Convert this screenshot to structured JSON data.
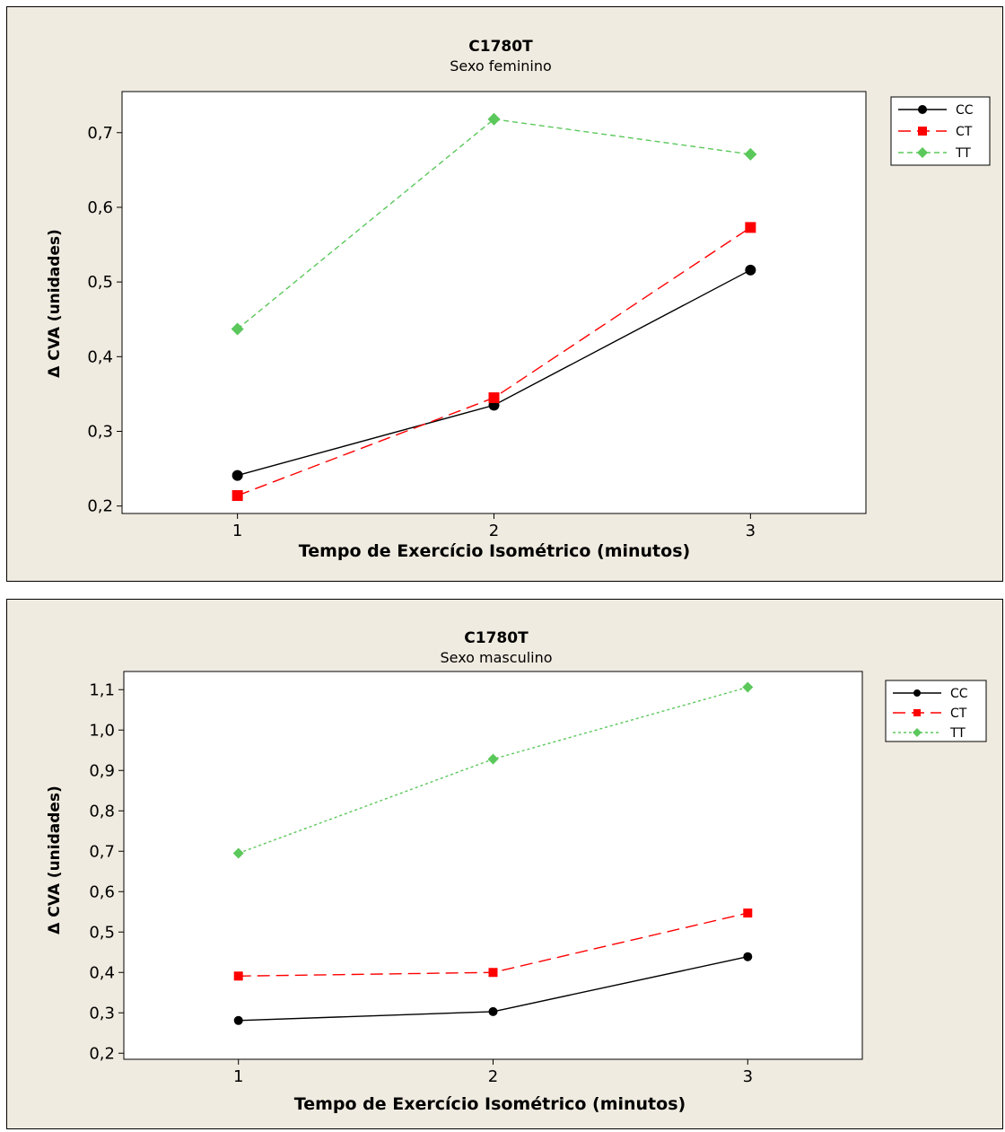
{
  "chart_data": [
    {
      "type": "line",
      "title": "C1780T",
      "subtitle": "Sexo feminino",
      "xlabel": "Tempo de Exercício Isométrico (minutos)",
      "ylabel": "Δ CVA (unidades)",
      "x": [
        1,
        2,
        3
      ],
      "xlim": [
        0.55,
        3.45
      ],
      "ylim": [
        0.19,
        0.755
      ],
      "yticks": [
        "0,2",
        "0,3",
        "0,4",
        "0,5",
        "0,6",
        "0,7"
      ],
      "xticks": [
        "1",
        "2",
        "3"
      ],
      "legend_position": "top-right",
      "series": [
        {
          "name": "CC",
          "values": [
            0.241,
            0.335,
            0.516
          ],
          "color": "#000000",
          "marker": "circle",
          "dash": ""
        },
        {
          "name": "CT",
          "values": [
            0.214,
            0.345,
            0.573
          ],
          "color": "#ff0000",
          "marker": "square",
          "dash": "14,7"
        },
        {
          "name": "TT",
          "values": [
            0.437,
            0.718,
            0.671
          ],
          "color": "#5bc85b",
          "marker": "diamond",
          "dash": "6,4"
        }
      ]
    },
    {
      "type": "line",
      "title": "C1780T",
      "subtitle": "Sexo masculino",
      "xlabel": "Tempo de Exercício Isométrico (minutos)",
      "ylabel": "Δ CVA (unidades)",
      "x": [
        1,
        2,
        3
      ],
      "xlim": [
        0.55,
        3.45
      ],
      "ylim": [
        0.185,
        1.145
      ],
      "yticks": [
        "0,2",
        "0,3",
        "0,4",
        "0,5",
        "0,6",
        "0,7",
        "0,8",
        "0,9",
        "1,0",
        "1,1"
      ],
      "xticks": [
        "1",
        "2",
        "3"
      ],
      "legend_position": "top-right",
      "series": [
        {
          "name": "CC",
          "values": [
            0.281,
            0.303,
            0.439
          ],
          "color": "#000000",
          "marker": "circle",
          "dash": ""
        },
        {
          "name": "CT",
          "values": [
            0.391,
            0.4,
            0.547
          ],
          "color": "#ff0000",
          "marker": "square",
          "dash": "14,7"
        },
        {
          "name": "TT",
          "values": [
            0.695,
            0.928,
            1.106
          ],
          "color": "#5bc85b",
          "marker": "diamond",
          "dash": "3,3"
        }
      ]
    }
  ]
}
